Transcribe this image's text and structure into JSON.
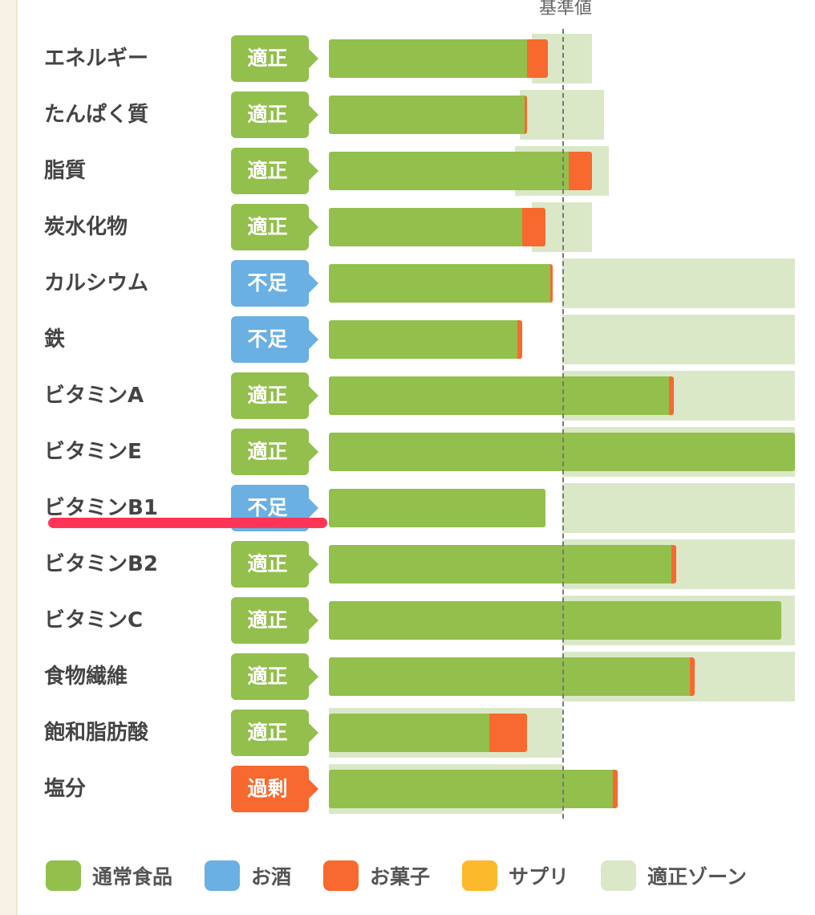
{
  "chart_data": {
    "type": "bar",
    "orientation": "horizontal-stacked",
    "reference_label": "基準値",
    "reference_value": 100,
    "unit": "% of reference (approx.)",
    "xlim": [
      0,
      200
    ],
    "colors": {
      "food": "#93bf4c",
      "alcohol": "#6ab0e2",
      "snack": "#f7692e",
      "supplement": "#fdb92c",
      "zone": "#dbe8c8"
    },
    "status_colors": {
      "適正": "#93bf4c",
      "不足": "#6ab0e2",
      "過剰": "#f7692e"
    },
    "rows": [
      {
        "label": "エネルギー",
        "status": "適正",
        "food": 85,
        "snack": 9,
        "zone": [
          87,
          113
        ]
      },
      {
        "label": "たんぱく質",
        "status": "適正",
        "food": 84,
        "snack": 1,
        "zone": [
          82,
          118
        ]
      },
      {
        "label": "脂質",
        "status": "適正",
        "food": 103,
        "snack": 10,
        "zone": [
          80,
          120
        ]
      },
      {
        "label": "炭水化物",
        "status": "適正",
        "food": 83,
        "snack": 10,
        "zone": [
          87,
          113
        ]
      },
      {
        "label": "カルシウム",
        "status": "不足",
        "food": 95,
        "snack": 1,
        "zone": [
          100,
          200
        ]
      },
      {
        "label": "鉄",
        "status": "不足",
        "food": 81,
        "snack": 2,
        "zone": [
          100,
          200
        ]
      },
      {
        "label": "ビタミンA",
        "status": "適正",
        "food": 146,
        "snack": 2,
        "zone": [
          100,
          200
        ]
      },
      {
        "label": "ビタミンE",
        "status": "適正",
        "food": 200,
        "snack": 0,
        "zone": [
          100,
          200
        ]
      },
      {
        "label": "ビタミンB1",
        "status": "不足",
        "food": 93,
        "snack": 0,
        "zone": [
          100,
          200
        ]
      },
      {
        "label": "ビタミンB2",
        "status": "適正",
        "food": 147,
        "snack": 2,
        "zone": [
          100,
          200
        ]
      },
      {
        "label": "ビタミンC",
        "status": "適正",
        "food": 194,
        "snack": 0,
        "zone": [
          100,
          200
        ]
      },
      {
        "label": "食物繊維",
        "status": "適正",
        "food": 155,
        "snack": 2,
        "zone": [
          100,
          200
        ]
      },
      {
        "label": "飽和脂肪酸",
        "status": "適正",
        "food": 69,
        "snack": 16,
        "zone": [
          0,
          100
        ]
      },
      {
        "label": "塩分",
        "status": "過剰",
        "food": 122,
        "snack": 2,
        "zone": [
          0,
          100
        ]
      }
    ],
    "legend": [
      {
        "label": "通常食品",
        "color": "#93bf4c"
      },
      {
        "label": "お酒",
        "color": "#6ab0e2"
      },
      {
        "label": "お菓子",
        "color": "#f7692e"
      },
      {
        "label": "サプリ",
        "color": "#fdb92c"
      },
      {
        "label": "適正ゾーン",
        "color": "#dbe8c8"
      }
    ],
    "legend_position": "bottom"
  }
}
